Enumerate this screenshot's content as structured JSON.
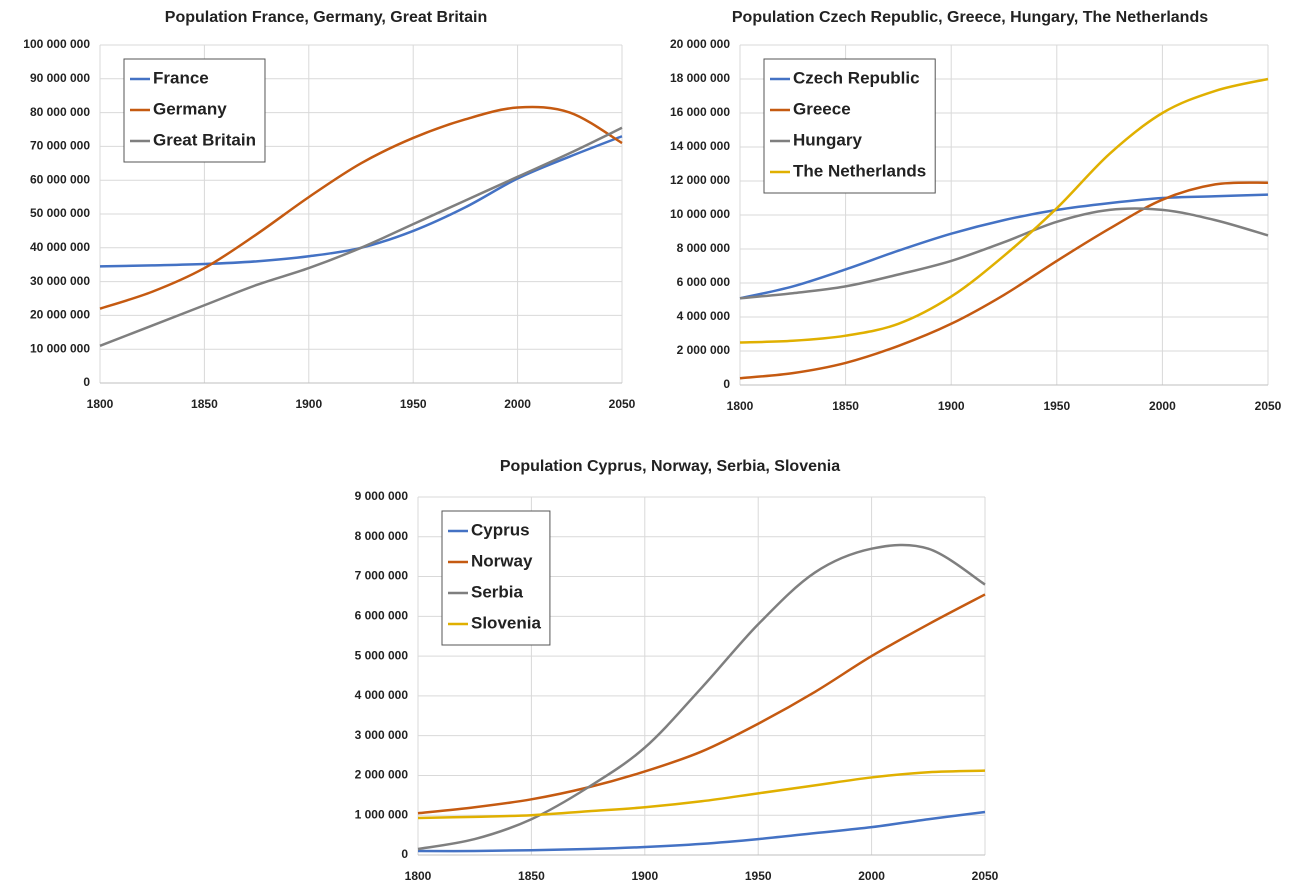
{
  "chart_data": [
    {
      "type": "line",
      "title": "Population France, Germany, Great Britain",
      "x": [
        1800,
        1825,
        1850,
        1875,
        1900,
        1925,
        1950,
        1975,
        2000,
        2025,
        2050
      ],
      "xlim": [
        1800,
        2050
      ],
      "xticks": [
        1800,
        1850,
        1900,
        1950,
        2000,
        2050
      ],
      "ylim": [
        0,
        100000000
      ],
      "yticks": [
        {
          "value": 0,
          "label": "0"
        },
        {
          "value": 10000000,
          "label": "10 000 000"
        },
        {
          "value": 20000000,
          "label": "20 000 000"
        },
        {
          "value": 30000000,
          "label": "30 000 000"
        },
        {
          "value": 40000000,
          "label": "40 000 000"
        },
        {
          "value": 50000000,
          "label": "50 000 000"
        },
        {
          "value": 60000000,
          "label": "60 000 000"
        },
        {
          "value": 70000000,
          "label": "70 000 000"
        },
        {
          "value": 80000000,
          "label": "80 000 000"
        },
        {
          "value": 90000000,
          "label": "90 000 000"
        },
        {
          "value": 100000000,
          "label": "100 000 000"
        }
      ],
      "grid": true,
      "legend": "upper left",
      "series": [
        {
          "name": "France",
          "color": "#4472c4",
          "values": [
            34500000,
            34800000,
            35200000,
            36000000,
            37500000,
            40000000,
            45000000,
            52000000,
            60500000,
            67000000,
            73000000
          ]
        },
        {
          "name": "Germany",
          "color": "#c55a11",
          "values": [
            22000000,
            27000000,
            34000000,
            44000000,
            55000000,
            65000000,
            72500000,
            78000000,
            81500000,
            80000000,
            71000000
          ]
        },
        {
          "name": "Great Britain",
          "color": "#7f7f7f",
          "values": [
            11000000,
            17000000,
            23000000,
            29000000,
            34000000,
            40000000,
            47000000,
            54000000,
            61000000,
            68000000,
            75500000
          ]
        }
      ]
    },
    {
      "type": "line",
      "title": "Population Czech Republic, Greece, Hungary, The Netherlands",
      "x": [
        1800,
        1825,
        1850,
        1875,
        1900,
        1925,
        1950,
        1975,
        2000,
        2025,
        2050
      ],
      "xlim": [
        1800,
        2050
      ],
      "xticks": [
        1800,
        1850,
        1900,
        1950,
        2000,
        2050
      ],
      "ylim": [
        0,
        20000000
      ],
      "yticks": [
        {
          "value": 0,
          "label": "0"
        },
        {
          "value": 2000000,
          "label": "2 000 000"
        },
        {
          "value": 4000000,
          "label": "4 000 000"
        },
        {
          "value": 6000000,
          "label": "6 000 000"
        },
        {
          "value": 8000000,
          "label": "8 000 000"
        },
        {
          "value": 10000000,
          "label": "10 000 000"
        },
        {
          "value": 12000000,
          "label": "12 000 000"
        },
        {
          "value": 14000000,
          "label": "14 000 000"
        },
        {
          "value": 16000000,
          "label": "16 000 000"
        },
        {
          "value": 18000000,
          "label": "18 000 000"
        },
        {
          "value": 20000000,
          "label": "20 000 000"
        }
      ],
      "grid": true,
      "legend": "upper left",
      "series": [
        {
          "name": "Czech Republic",
          "color": "#4472c4",
          "values": [
            5100000,
            5800000,
            6800000,
            7900000,
            8900000,
            9700000,
            10300000,
            10700000,
            11000000,
            11100000,
            11200000
          ]
        },
        {
          "name": "Greece",
          "color": "#c55a11",
          "values": [
            400000,
            700000,
            1300000,
            2300000,
            3600000,
            5300000,
            7300000,
            9200000,
            10900000,
            11800000,
            11900000
          ]
        },
        {
          "name": "Hungary",
          "color": "#7f7f7f",
          "values": [
            5100000,
            5400000,
            5800000,
            6500000,
            7300000,
            8400000,
            9600000,
            10300000,
            10300000,
            9700000,
            8800000
          ]
        },
        {
          "name": "The Netherlands",
          "color": "#e0b000",
          "values": [
            2500000,
            2600000,
            2900000,
            3600000,
            5200000,
            7600000,
            10400000,
            13600000,
            16000000,
            17300000,
            18000000
          ]
        }
      ]
    },
    {
      "type": "line",
      "title": "Population Cyprus, Norway, Serbia, Slovenia",
      "x": [
        1800,
        1825,
        1850,
        1875,
        1900,
        1925,
        1950,
        1975,
        2000,
        2025,
        2050
      ],
      "xlim": [
        1800,
        2050
      ],
      "xticks": [
        1800,
        1850,
        1900,
        1950,
        2000,
        2050
      ],
      "ylim": [
        0,
        9000000
      ],
      "yticks": [
        {
          "value": 0,
          "label": "0"
        },
        {
          "value": 1000000,
          "label": "1 000 000"
        },
        {
          "value": 2000000,
          "label": "2 000 000"
        },
        {
          "value": 3000000,
          "label": "3 000 000"
        },
        {
          "value": 4000000,
          "label": "4 000 000"
        },
        {
          "value": 5000000,
          "label": "5 000 000"
        },
        {
          "value": 6000000,
          "label": "6 000 000"
        },
        {
          "value": 7000000,
          "label": "7 000 000"
        },
        {
          "value": 8000000,
          "label": "8 000 000"
        },
        {
          "value": 9000000,
          "label": "9 000 000"
        }
      ],
      "grid": true,
      "legend": "upper left",
      "series": [
        {
          "name": "Cyprus",
          "color": "#4472c4",
          "values": [
            100000,
            100000,
            120000,
            150000,
            200000,
            280000,
            400000,
            550000,
            700000,
            900000,
            1080000
          ]
        },
        {
          "name": "Norway",
          "color": "#c55a11",
          "values": [
            1050000,
            1200000,
            1400000,
            1700000,
            2100000,
            2600000,
            3300000,
            4100000,
            5000000,
            5800000,
            6550000
          ]
        },
        {
          "name": "Serbia",
          "color": "#7f7f7f",
          "values": [
            150000,
            400000,
            900000,
            1700000,
            2700000,
            4200000,
            5800000,
            7100000,
            7700000,
            7700000,
            6800000
          ]
        },
        {
          "name": "Slovenia",
          "color": "#e0b000",
          "values": [
            930000,
            960000,
            1000000,
            1100000,
            1200000,
            1350000,
            1550000,
            1750000,
            1950000,
            2080000,
            2120000
          ]
        }
      ]
    }
  ]
}
